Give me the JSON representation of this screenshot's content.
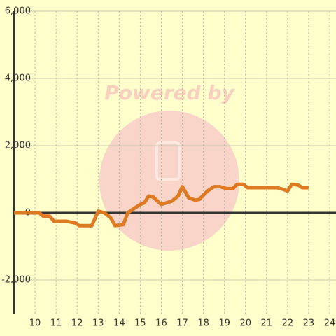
{
  "chart_data": {
    "type": "line",
    "watermark": "Powered by",
    "x": [
      9,
      9.5,
      10,
      10.2,
      10.4,
      10.7,
      10.9,
      11.5,
      11.9,
      12.1,
      12.7,
      13.0,
      13.3,
      13.6,
      13.8,
      14.2,
      14.4,
      15.0,
      15.2,
      15.4,
      15.6,
      15.9,
      16.0,
      16.5,
      16.8,
      17.0,
      17.3,
      17.6,
      17.8,
      18.2,
      18.5,
      18.8,
      19.1,
      19.4,
      19.6,
      19.9,
      20.1,
      21.5,
      21.8,
      22.0,
      22.2,
      22.5,
      22.7,
      23.0
    ],
    "series": [
      {
        "color": "#dd7a22",
        "values": [
          0,
          0,
          0,
          0,
          -100,
          -100,
          -250,
          -250,
          -300,
          -380,
          -380,
          50,
          0,
          -150,
          -380,
          -350,
          0,
          250,
          300,
          500,
          480,
          300,
          250,
          350,
          500,
          780,
          450,
          380,
          400,
          650,
          780,
          780,
          720,
          720,
          850,
          850,
          750,
          750,
          700,
          650,
          850,
          830,
          750,
          750
        ]
      }
    ],
    "xlim": [
      9,
      24.3
    ],
    "xticks": [
      10,
      11,
      12,
      13,
      14,
      15,
      16,
      17,
      18,
      19,
      20,
      21,
      22,
      23,
      24
    ],
    "ylim": [
      -3000,
      6000
    ],
    "yticks": [
      {
        "value": -2000,
        "label": "-2,000"
      },
      0,
      {
        "value": 2000,
        "label": "2,000"
      },
      {
        "value": 4000,
        "label": "4,000"
      },
      {
        "value": 6000,
        "label": "6,000"
      }
    ],
    "grid": true
  }
}
